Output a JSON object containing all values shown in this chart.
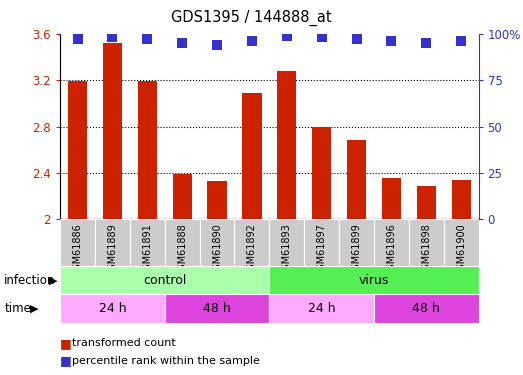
{
  "title": "GDS1395 / 144888_at",
  "samples": [
    "GSM61886",
    "GSM61889",
    "GSM61891",
    "GSM61888",
    "GSM61890",
    "GSM61892",
    "GSM61893",
    "GSM61897",
    "GSM61899",
    "GSM61896",
    "GSM61898",
    "GSM61900"
  ],
  "transformed_count": [
    3.19,
    3.52,
    3.19,
    2.39,
    2.33,
    3.09,
    3.28,
    2.8,
    2.68,
    2.36,
    2.29,
    2.34
  ],
  "percentile_rank": [
    97,
    98,
    97,
    95,
    94,
    96,
    99,
    98,
    97,
    96,
    95,
    96
  ],
  "bar_color": "#cc2200",
  "dot_color": "#3333cc",
  "ylim": [
    2.0,
    3.6
  ],
  "yticks": [
    2.0,
    2.4,
    2.8,
    3.2,
    3.6
  ],
  "right_ylim": [
    0,
    100
  ],
  "right_yticks": [
    0,
    25,
    50,
    75,
    100
  ],
  "right_ytick_labels": [
    "0",
    "25",
    "50",
    "75",
    "100%"
  ],
  "infection_groups": [
    {
      "label": "control",
      "start": 0,
      "end": 6,
      "color": "#aaffaa"
    },
    {
      "label": "virus",
      "start": 6,
      "end": 12,
      "color": "#55ee55"
    }
  ],
  "time_groups": [
    {
      "label": "24 h",
      "start": 0,
      "end": 3,
      "color": "#ffaaff"
    },
    {
      "label": "48 h",
      "start": 3,
      "end": 6,
      "color": "#dd44dd"
    },
    {
      "label": "24 h",
      "start": 6,
      "end": 9,
      "color": "#ffaaff"
    },
    {
      "label": "48 h",
      "start": 9,
      "end": 12,
      "color": "#dd44dd"
    }
  ],
  "tick_label_color_left": "#cc2200",
  "tick_label_color_right": "#3333cc",
  "bar_width": 0.55,
  "dot_size": 55,
  "xtick_bg_color": "#cccccc",
  "background_color": "#ffffff"
}
